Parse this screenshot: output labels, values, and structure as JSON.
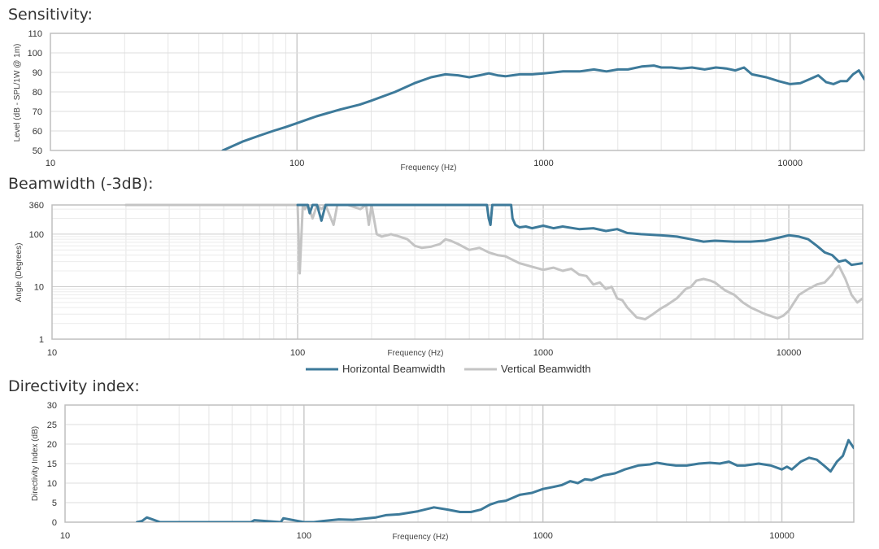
{
  "colors": {
    "horizontal": "#3d7a9a",
    "vertical": "#c4c4c4",
    "grid": "#dddddd",
    "frame": "#bfbfbf"
  },
  "chart_data": [
    {
      "type": "line",
      "title": "Sensitivity:",
      "xlabel": "Frequency (Hz)",
      "ylabel": "Level (dB - SPL/1W @ 1m)",
      "xscale": "log",
      "xlim": [
        10,
        20000
      ],
      "ylim": [
        50,
        110
      ],
      "xticks": [
        10,
        100,
        1000,
        10000
      ],
      "xtick_labels": [
        "10",
        "100",
        "1000",
        "10000"
      ],
      "yticks": [
        50,
        60,
        70,
        80,
        90,
        100,
        110
      ],
      "ytick_labels": [
        "50",
        "60",
        "70",
        "80",
        "90",
        "100",
        "110"
      ],
      "grid": true,
      "series": [
        {
          "name": "",
          "x": [
            50,
            60,
            70,
            80,
            90,
            100,
            120,
            150,
            180,
            200,
            250,
            300,
            350,
            400,
            450,
            500,
            550,
            600,
            650,
            700,
            800,
            900,
            1000,
            1100,
            1200,
            1400,
            1600,
            1800,
            2000,
            2200,
            2500,
            2800,
            3000,
            3300,
            3600,
            4000,
            4500,
            5000,
            5500,
            6000,
            6500,
            7000,
            8000,
            9000,
            10000,
            11000,
            12000,
            13000,
            14000,
            15000,
            16000,
            17000,
            18000,
            19000,
            20000
          ],
          "y": [
            50,
            54.5,
            57.5,
            60,
            62,
            64,
            67.5,
            71,
            73.5,
            75.5,
            80,
            84.5,
            87.5,
            89,
            88.5,
            87.5,
            88.5,
            89.5,
            88.5,
            88,
            89,
            89,
            89.5,
            90,
            90.5,
            90.5,
            91.5,
            90.5,
            91.5,
            91.5,
            93,
            93.5,
            92.5,
            92.5,
            92,
            92.5,
            91.5,
            92.5,
            92,
            91,
            92.5,
            89,
            87.5,
            85.5,
            84,
            84.5,
            86.5,
            88.5,
            85,
            84,
            85.5,
            85.5,
            89,
            91,
            86.5
          ]
        }
      ]
    },
    {
      "type": "line",
      "title": "Beamwidth (-3dB):",
      "xlabel": "Frequency (Hz)",
      "ylabel": "Angle (Degrees)",
      "xscale": "log",
      "yscale": "log",
      "xlim": [
        10,
        20000
      ],
      "ylim": [
        1,
        360
      ],
      "xticks": [
        10,
        100,
        1000,
        10000
      ],
      "xtick_labels": [
        "10",
        "100",
        "1000",
        "10000"
      ],
      "yticks": [
        1,
        10,
        100,
        360
      ],
      "ytick_labels": [
        "1",
        "10",
        "100",
        "360"
      ],
      "grid": true,
      "legend": "bottom",
      "series": [
        {
          "name": "Horizontal Beamwidth",
          "x": [
            100,
            103,
            106,
            108,
            110,
            112,
            115,
            120,
            125,
            130,
            200,
            400,
            590,
            600,
            610,
            620,
            650,
            700,
            740,
            750,
            770,
            800,
            850,
            900,
            1000,
            1100,
            1200,
            1400,
            1600,
            1800,
            2000,
            2200,
            2500,
            3000,
            3500,
            4000,
            4500,
            5000,
            6000,
            7000,
            8000,
            9000,
            10000,
            11000,
            12000,
            13000,
            14000,
            15000,
            16000,
            17000,
            18000,
            20000
          ],
          "y": [
            360,
            360,
            360,
            360,
            360,
            250,
            360,
            360,
            180,
            360,
            360,
            360,
            360,
            200,
            150,
            360,
            360,
            360,
            360,
            200,
            150,
            135,
            140,
            130,
            145,
            130,
            140,
            125,
            130,
            115,
            125,
            105,
            100,
            95,
            90,
            80,
            72,
            75,
            72,
            72,
            75,
            85,
            95,
            90,
            80,
            60,
            45,
            40,
            30,
            32,
            26,
            28
          ]
        },
        {
          "name": "Vertical Beamwidth",
          "x": [
            20,
            30,
            50,
            80,
            100,
            102,
            105,
            107,
            110,
            115,
            120,
            125,
            130,
            140,
            145,
            150,
            160,
            180,
            190,
            195,
            200,
            210,
            220,
            240,
            260,
            280,
            300,
            320,
            350,
            380,
            400,
            420,
            450,
            500,
            550,
            600,
            650,
            700,
            800,
            900,
            1000,
            1100,
            1200,
            1300,
            1400,
            1500,
            1600,
            1700,
            1800,
            1900,
            2000,
            2100,
            2200,
            2400,
            2600,
            2800,
            3000,
            3200,
            3500,
            3800,
            4000,
            4200,
            4500,
            4800,
            5000,
            5500,
            6000,
            6500,
            7000,
            8000,
            9000,
            9500,
            10000,
            10500,
            11000,
            12000,
            13000,
            14000,
            15000,
            15500,
            16000,
            17000,
            18000,
            19000,
            20000
          ],
          "y": [
            360,
            360,
            360,
            360,
            360,
            18,
            360,
            300,
            360,
            200,
            360,
            300,
            360,
            150,
            360,
            360,
            360,
            300,
            360,
            150,
            360,
            100,
            90,
            100,
            90,
            80,
            60,
            55,
            58,
            65,
            80,
            75,
            65,
            50,
            55,
            45,
            40,
            38,
            28,
            24,
            21,
            23,
            20,
            22,
            17,
            16,
            11,
            12,
            9,
            10,
            6,
            5.5,
            4,
            2.6,
            2.4,
            3,
            3.8,
            4.5,
            6,
            9,
            10,
            13,
            14,
            13,
            12,
            8.5,
            7,
            5,
            4,
            3,
            2.5,
            2.8,
            3.5,
            5,
            7,
            9,
            11,
            12,
            17,
            22,
            25,
            14,
            7,
            5,
            6
          ]
        }
      ]
    },
    {
      "type": "line",
      "title": "Directivity index:",
      "xlabel": "Frequency (Hz)",
      "ylabel": "Directivity Index (dB)",
      "xscale": "log",
      "xlim": [
        10,
        20000
      ],
      "ylim": [
        0,
        30
      ],
      "xticks": [
        10,
        100,
        1000,
        10000
      ],
      "xtick_labels": [
        "10",
        "100",
        "1000",
        "10000"
      ],
      "yticks": [
        0,
        5,
        10,
        15,
        20,
        25,
        30
      ],
      "ytick_labels": [
        "0",
        "5",
        "10",
        "15",
        "20",
        "25",
        "30"
      ],
      "grid": true,
      "series": [
        {
          "name": "",
          "x": [
            20,
            21,
            22,
            23,
            25,
            30,
            40,
            60,
            62,
            80,
            82,
            100,
            110,
            120,
            140,
            160,
            200,
            220,
            250,
            300,
            350,
            400,
            450,
            500,
            550,
            600,
            650,
            700,
            800,
            900,
            1000,
            1100,
            1200,
            1300,
            1400,
            1500,
            1600,
            1800,
            2000,
            2200,
            2500,
            2800,
            3000,
            3300,
            3600,
            4000,
            4500,
            5000,
            5500,
            6000,
            6500,
            7000,
            8000,
            9000,
            10000,
            10500,
            11000,
            12000,
            13000,
            14000,
            15000,
            16000,
            17000,
            18000,
            19000,
            20000
          ],
          "y": [
            0,
            0.3,
            1.2,
            0.8,
            0,
            0,
            0,
            0,
            0.5,
            0,
            1,
            0,
            0,
            0.3,
            0.7,
            0.6,
            1.2,
            1.8,
            2,
            2.8,
            3.8,
            3.2,
            2.6,
            2.6,
            3.2,
            4.5,
            5.2,
            5.5,
            7,
            7.5,
            8.5,
            9,
            9.5,
            10.5,
            10,
            11,
            10.8,
            12,
            12.5,
            13.5,
            14.5,
            14.8,
            15.2,
            14.8,
            14.5,
            14.5,
            15,
            15.2,
            15,
            15.5,
            14.5,
            14.5,
            15,
            14.5,
            13.5,
            14.2,
            13.5,
            15.5,
            16.5,
            16,
            14.5,
            13,
            15.5,
            17,
            21,
            19
          ]
        }
      ]
    }
  ]
}
